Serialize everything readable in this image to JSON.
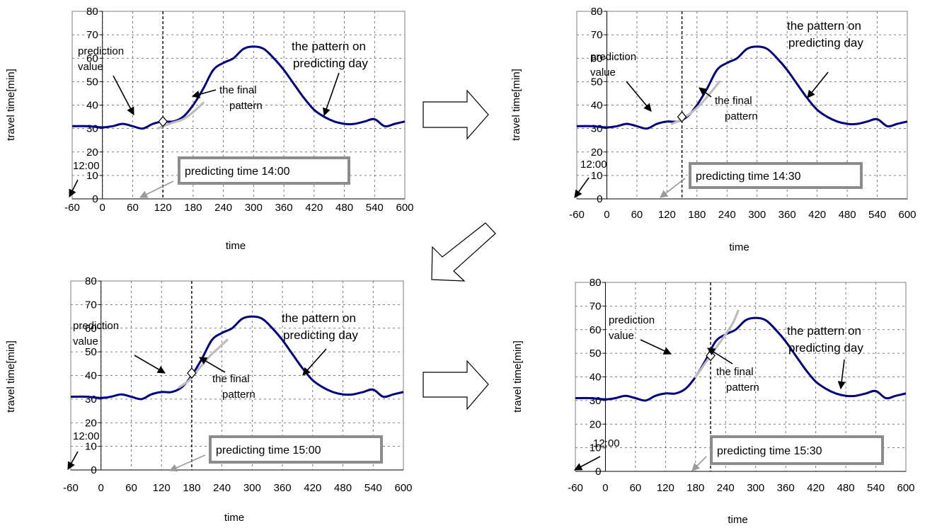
{
  "figure": {
    "arrow_color": "#000000",
    "series_color": "#00007f",
    "final_pattern_color": "#bdbdbd",
    "box_color": "#8c8c8c",
    "transition_arrows": [
      "right-arrow",
      "down-left-arrow",
      "right-arrow"
    ]
  },
  "chart_data": [
    {
      "type": "line",
      "xlabel": "time",
      "ylabel": "travel time[min]",
      "xlim": [
        -60,
        600
      ],
      "ylim": [
        0,
        80
      ],
      "xticks": [
        "-60",
        "0",
        "60",
        "120",
        "180",
        "240",
        "300",
        "360",
        "420",
        "480",
        "540",
        "600"
      ],
      "yticks": [
        "0",
        "10",
        "20",
        "30",
        "40",
        "50",
        "60",
        "70",
        "80"
      ],
      "grid": true,
      "start_label": "12:00",
      "predicting_time_label": "predicting time 14:00",
      "predicting_x": 120,
      "prediction_value_label": [
        "prediction",
        "value"
      ],
      "prediction_value": 33,
      "final_pattern_label": [
        "the final",
        "pattern"
      ],
      "day_pattern_label": [
        "the pattern on",
        "predicting day"
      ],
      "series": [
        {
          "x": [
            -60,
            -30,
            0,
            20,
            40,
            60,
            80,
            100,
            120,
            140,
            160,
            180,
            200,
            220,
            240,
            260,
            280,
            300,
            320,
            340,
            360,
            380,
            400,
            420,
            440,
            460,
            480,
            500,
            520,
            540,
            560,
            580,
            600
          ],
          "y": [
            31,
            31,
            30.5,
            31,
            32,
            31,
            30,
            32,
            33,
            33,
            35,
            40,
            47,
            55,
            58,
            60,
            64,
            65,
            64,
            60,
            55,
            49,
            43,
            38,
            35,
            33,
            32,
            32,
            33,
            34,
            31,
            32,
            33
          ]
        },
        {
          "x": [
            110,
            120,
            140,
            160,
            180,
            200
          ],
          "y": [
            30,
            31,
            32.5,
            34,
            37,
            41
          ]
        }
      ]
    },
    {
      "type": "line",
      "xlabel": "time",
      "ylabel": "travel time[min]",
      "xlim": [
        -60,
        600
      ],
      "ylim": [
        0,
        80
      ],
      "xticks": [
        "-60",
        "0",
        "60",
        "120",
        "180",
        "240",
        "300",
        "360",
        "420",
        "480",
        "540",
        "600"
      ],
      "yticks": [
        "0",
        "10",
        "20",
        "30",
        "40",
        "50",
        "60",
        "70",
        "80"
      ],
      "grid": true,
      "start_label": "12:00",
      "predicting_time_label": "predicting time 14:30",
      "predicting_x": 150,
      "prediction_value_label": [
        "prediction",
        "value"
      ],
      "prediction_value": 35,
      "final_pattern_label": [
        "the final",
        "pattern"
      ],
      "day_pattern_label": [
        "the pattern on",
        "predicting day"
      ],
      "series": [
        {
          "x": [
            -60,
            -30,
            0,
            20,
            40,
            60,
            80,
            100,
            120,
            140,
            160,
            180,
            200,
            220,
            240,
            260,
            280,
            300,
            320,
            340,
            360,
            380,
            400,
            420,
            440,
            460,
            480,
            500,
            520,
            540,
            560,
            580,
            600
          ],
          "y": [
            31,
            31,
            30.5,
            31,
            32,
            31,
            30,
            32,
            33,
            33,
            35,
            40,
            47,
            55,
            58,
            60,
            64,
            65,
            64,
            60,
            55,
            49,
            43,
            38,
            35,
            33,
            32,
            32,
            33,
            34,
            31,
            32,
            33
          ]
        },
        {
          "x": [
            130,
            150,
            170,
            190,
            210,
            225
          ],
          "y": [
            32,
            34,
            37,
            41,
            46,
            50
          ]
        }
      ]
    },
    {
      "type": "line",
      "xlabel": "time",
      "ylabel": "travel time[min]",
      "xlim": [
        -60,
        600
      ],
      "ylim": [
        0,
        80
      ],
      "xticks": [
        "-60",
        "0",
        "60",
        "120",
        "180",
        "240",
        "300",
        "360",
        "420",
        "480",
        "540",
        "600"
      ],
      "yticks": [
        "0",
        "10",
        "20",
        "30",
        "40",
        "50",
        "60",
        "70",
        "80"
      ],
      "grid": true,
      "start_label": "12:00",
      "predicting_time_label": "predicting time 15:00",
      "predicting_x": 180,
      "prediction_value_label": [
        "prediction",
        "value"
      ],
      "prediction_value": 41,
      "final_pattern_label": [
        "the final",
        "pattern"
      ],
      "day_pattern_label": [
        "the pattern on",
        "predicting day"
      ],
      "series": [
        {
          "x": [
            -60,
            -30,
            0,
            20,
            40,
            60,
            80,
            100,
            120,
            140,
            160,
            180,
            200,
            220,
            240,
            260,
            280,
            300,
            320,
            340,
            360,
            380,
            400,
            420,
            440,
            460,
            480,
            500,
            520,
            540,
            560,
            580,
            600
          ],
          "y": [
            31,
            31,
            30.5,
            31,
            32,
            31,
            30,
            32,
            33,
            33,
            35,
            40,
            47,
            55,
            58,
            60,
            64,
            65,
            64,
            60,
            55,
            49,
            43,
            38,
            35,
            33,
            32,
            32,
            33,
            34,
            31,
            32,
            33
          ]
        },
        {
          "x": [
            155,
            175,
            195,
            215,
            235,
            250
          ],
          "y": [
            35,
            38,
            43,
            48,
            52,
            55
          ]
        }
      ]
    },
    {
      "type": "line",
      "xlabel": "time",
      "ylabel": "travel time[min]",
      "xlim": [
        -60,
        600
      ],
      "ylim": [
        0,
        80
      ],
      "xticks": [
        "-60",
        "0",
        "60",
        "120",
        "180",
        "240",
        "300",
        "360",
        "420",
        "480",
        "540",
        "600"
      ],
      "yticks": [
        "0",
        "10",
        "20",
        "30",
        "40",
        "50",
        "60",
        "70",
        "80"
      ],
      "grid": true,
      "start_label": "12:00",
      "predicting_time_label": "predicting time 15:30",
      "predicting_x": 210,
      "prediction_value_label": [
        "prediction",
        "value"
      ],
      "prediction_value": 49,
      "final_pattern_label": [
        "the final",
        "pattern"
      ],
      "day_pattern_label": [
        "the pattern on",
        "predicting day"
      ],
      "series": [
        {
          "x": [
            -60,
            -30,
            0,
            20,
            40,
            60,
            80,
            100,
            120,
            140,
            160,
            180,
            200,
            220,
            240,
            260,
            280,
            300,
            320,
            340,
            360,
            380,
            400,
            420,
            440,
            460,
            480,
            500,
            520,
            540,
            560,
            580,
            600
          ],
          "y": [
            31,
            31,
            30.5,
            31,
            32,
            31,
            30,
            32,
            33,
            33,
            35,
            40,
            47,
            55,
            58,
            60,
            64,
            65,
            64,
            60,
            55,
            49,
            43,
            38,
            35,
            33,
            32,
            32,
            33,
            34,
            31,
            32,
            33
          ]
        },
        {
          "x": [
            180,
            200,
            220,
            240,
            255,
            265
          ],
          "y": [
            40,
            46,
            52,
            58,
            63,
            68
          ]
        }
      ]
    }
  ]
}
